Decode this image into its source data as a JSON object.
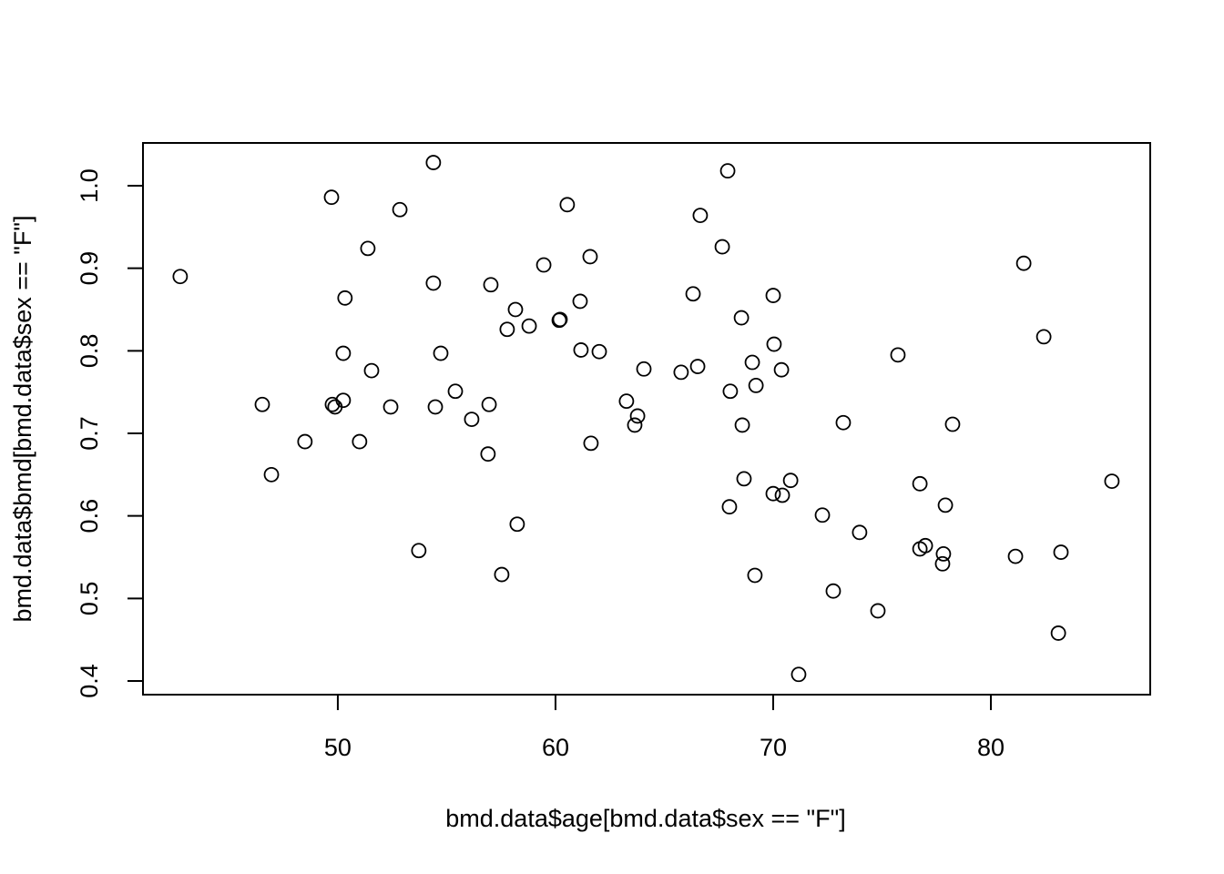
{
  "chart_data": {
    "type": "scatter",
    "xlabel": "bmd.data$age[bmd.data$sex == \"F\"]",
    "ylabel": "bmd.data$bmd[bmd.data$sex == \"F\"]",
    "x": [
      42.76,
      46.53,
      46.95,
      48.49,
      49.71,
      49.75,
      49.87,
      50.25,
      50.25,
      50.33,
      51.0,
      51.38,
      51.55,
      52.43,
      52.85,
      53.72,
      54.39,
      54.39,
      54.48,
      54.73,
      55.4,
      56.15,
      56.9,
      56.95,
      57.03,
      57.53,
      57.78,
      58.16,
      58.24,
      58.79,
      59.46,
      60.17,
      60.21,
      60.54,
      61.13,
      61.17,
      61.59,
      61.63,
      62.01,
      63.26,
      63.64,
      63.77,
      64.06,
      65.77,
      66.32,
      66.53,
      66.65,
      67.66,
      67.91,
      68.03,
      67.99,
      68.58,
      68.54,
      68.66,
      69.04,
      69.16,
      69.21,
      70.0,
      70.0,
      70.04,
      70.38,
      70.42,
      70.8,
      71.17,
      72.26,
      72.76,
      73.22,
      73.97,
      74.81,
      75.73,
      76.74,
      76.74,
      76.99,
      77.78,
      77.82,
      77.91,
      78.24,
      81.13,
      81.51,
      82.43,
      83.1,
      83.22,
      85.56
    ],
    "y": [
      0.89,
      0.735,
      0.65,
      0.69,
      0.986,
      0.735,
      0.732,
      0.74,
      0.797,
      0.864,
      0.69,
      0.924,
      0.776,
      0.732,
      0.971,
      0.558,
      1.028,
      0.882,
      0.732,
      0.797,
      0.751,
      0.717,
      0.675,
      0.735,
      0.88,
      0.529,
      0.826,
      0.85,
      0.59,
      0.83,
      0.904,
      0.837,
      0.838,
      0.977,
      0.86,
      0.801,
      0.914,
      0.688,
      0.799,
      0.739,
      0.71,
      0.721,
      0.778,
      0.774,
      0.869,
      0.781,
      0.964,
      0.926,
      1.018,
      0.751,
      0.611,
      0.71,
      0.84,
      0.645,
      0.786,
      0.528,
      0.758,
      0.627,
      0.867,
      0.808,
      0.777,
      0.625,
      0.643,
      0.408,
      0.601,
      0.509,
      0.713,
      0.58,
      0.485,
      0.795,
      0.56,
      0.639,
      0.564,
      0.542,
      0.554,
      0.613,
      0.711,
      0.551,
      0.906,
      0.817,
      0.458,
      0.556,
      0.642
    ],
    "color": "#000000",
    "xlim": [
      41.05,
      87.32
    ],
    "ylim": [
      0.3835,
      1.0518
    ],
    "xticks": [
      50,
      60,
      70,
      80
    ],
    "yticks": [
      0.4,
      0.5,
      0.6,
      0.7,
      0.8,
      0.9,
      {
        "value": 1,
        "label": "1.0"
      }
    ]
  }
}
